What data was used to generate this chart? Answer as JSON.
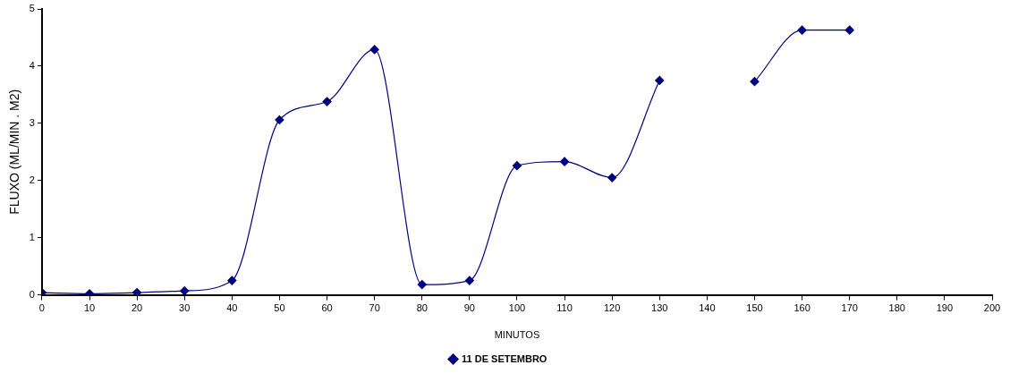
{
  "chart_data": {
    "type": "line",
    "xlabel": "MINUTOS",
    "ylabel": "FLUXO (ML/MIN . M2)",
    "x": [
      0,
      10,
      20,
      30,
      40,
      50,
      60,
      70,
      80,
      90,
      100,
      110,
      120,
      130,
      140,
      150,
      160,
      170
    ],
    "series": [
      {
        "name": "11 DE SETEMBRO",
        "color": "#000080",
        "values": [
          0.04,
          0.02,
          0.04,
          0.07,
          0.25,
          3.06,
          3.38,
          4.29,
          0.18,
          0.25,
          2.26,
          2.33,
          2.05,
          3.75,
          null,
          3.73,
          4.63,
          4.63
        ]
      }
    ],
    "xlim": [
      0,
      200
    ],
    "xticks": [
      0,
      10,
      20,
      30,
      40,
      50,
      60,
      70,
      80,
      90,
      100,
      110,
      120,
      130,
      140,
      150,
      160,
      170,
      180,
      190,
      200
    ],
    "ylim": [
      0,
      5
    ],
    "yticks": [
      0,
      1,
      2,
      3,
      4,
      5
    ],
    "grid": false,
    "legend": "bottom",
    "marker": "diamond",
    "line_style": "solid"
  }
}
